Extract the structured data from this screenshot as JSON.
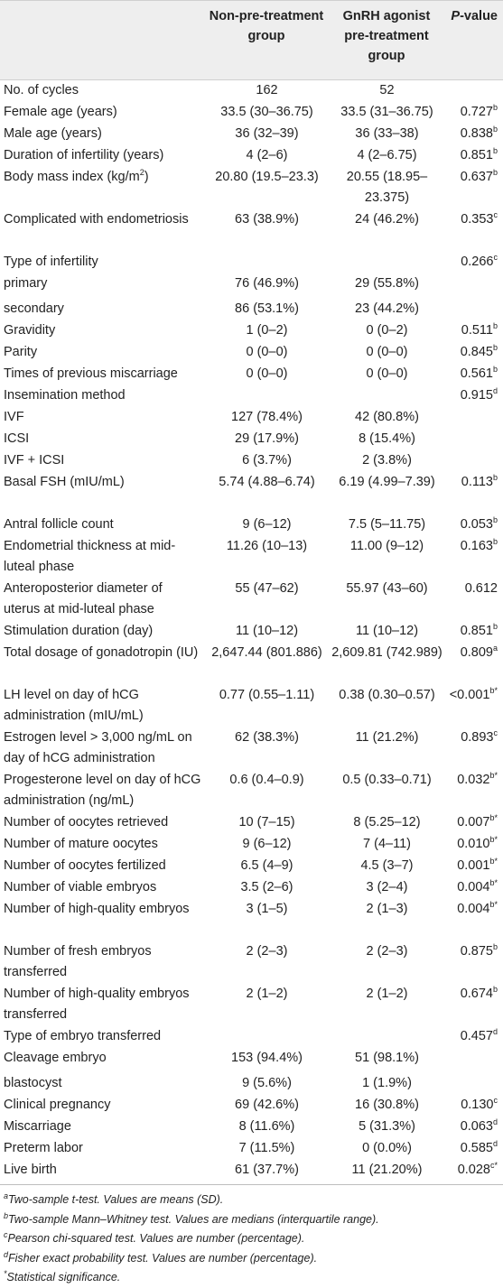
{
  "header": {
    "col1": "",
    "col2": "Non-pre-treatment group",
    "col3": "GnRH agonist pre-treatment group",
    "col4_italic": "P",
    "col4_rest": "-value"
  },
  "rows": [
    {
      "label": "No. of cycles",
      "a": "162",
      "b": "52",
      "p": "",
      "sup": ""
    },
    {
      "label": "Female age (years)",
      "a": "33.5 (30–36.75)",
      "b": "33.5 (31–36.75)",
      "p": "0.727",
      "sup": "b"
    },
    {
      "label": "Male age (years)",
      "a": "36 (32–39)",
      "b": "36 (33–38)",
      "p": "0.838",
      "sup": "b"
    },
    {
      "label": "Duration of infertility (years)",
      "a": "4 (2–6)",
      "b": "4 (2–6.75)",
      "p": "0.851",
      "sup": "b"
    },
    {
      "label": "Body mass index (kg/m",
      "label_sup": "2",
      "label_tail": ")",
      "a": "20.80 (19.5–23.3)",
      "b": "20.55 (18.95–23.375)",
      "p": "0.637",
      "sup": "b"
    },
    {
      "label": "Complicated with endometriosis",
      "a": "63 (38.9%)",
      "b": "24 (46.2%)",
      "p": "0.353",
      "sup": "c"
    },
    {
      "label": "Type of infertility",
      "a": "",
      "b": "",
      "p": "0.266",
      "sup": "c"
    },
    {
      "label": "primary",
      "a": "76 (46.9%)",
      "b": "29 (55.8%)",
      "p": "",
      "sup": ""
    },
    {
      "label": "secondary",
      "a": "86 (53.1%)",
      "b": "23 (44.2%)",
      "p": "",
      "sup": ""
    },
    {
      "label": "Gravidity",
      "a": "1 (0–2)",
      "b": "0 (0–2)",
      "p": "0.511",
      "sup": "b"
    },
    {
      "label": "Parity",
      "a": "0 (0–0)",
      "b": "0 (0–0)",
      "p": "0.845",
      "sup": "b"
    },
    {
      "label": "Times of previous miscarriage",
      "a": "0 (0–0)",
      "b": "0 (0–0)",
      "p": "0.561",
      "sup": "b"
    },
    {
      "label": "Insemination method",
      "a": "",
      "b": "",
      "p": "0.915",
      "sup": "d"
    },
    {
      "label": "IVF",
      "a": "127 (78.4%)",
      "b": "42 (80.8%)",
      "p": "",
      "sup": ""
    },
    {
      "label": "ICSI",
      "a": "29 (17.9%)",
      "b": "8 (15.4%)",
      "p": "",
      "sup": ""
    },
    {
      "label": "IVF + ICSI",
      "a": "6 (3.7%)",
      "b": "2 (3.8%)",
      "p": "",
      "sup": ""
    },
    {
      "label": "Basal FSH (mIU/mL)",
      "a": "5.74 (4.88–6.74)",
      "b": "6.19 (4.99–7.39)",
      "p": "0.113",
      "sup": "b"
    },
    {
      "label": "Antral follicle count",
      "a": "9 (6–12)",
      "b": "7.5 (5–11.75)",
      "p": "0.053",
      "sup": "b"
    },
    {
      "label": "Endometrial thickness at mid-luteal phase",
      "a": "11.26 (10–13)",
      "b": "11.00 (9–12)",
      "p": "0.163",
      "sup": "b"
    },
    {
      "label": "Anteroposterior diameter of uterus at mid-luteal phase",
      "a": "55 (47–62)",
      "b": "55.97 (43–60)",
      "p": "0.612",
      "sup": ""
    },
    {
      "label": "Stimulation duration (day)",
      "a": "11 (10–12)",
      "b": "11 (10–12)",
      "p": "0.851",
      "sup": "b"
    },
    {
      "label": "Total dosage of gonadotropin (IU)",
      "a": "2,647.44 (801.886)",
      "b": "2,609.81 (742.989)",
      "p": "0.809",
      "sup": "a"
    },
    {
      "label": "LH level on day of hCG administration (mIU/mL)",
      "a": "0.77 (0.55–1.11)",
      "b": "0.38 (0.30–0.57)",
      "p": "<0.001",
      "sup": "b*"
    },
    {
      "label": "Estrogen level > 3,000 ng/mL on day of hCG administration",
      "a": "62 (38.3%)",
      "b": "11 (21.2%)",
      "p": "0.893",
      "sup": "c"
    },
    {
      "label": "Progesterone level on day of hCG administration (ng/mL)",
      "a": "0.6 (0.4–0.9)",
      "b": "0.5 (0.33–0.71)",
      "p": "0.032",
      "sup": "b*"
    },
    {
      "label": "Number of oocytes retrieved",
      "a": "10 (7–15)",
      "b": "8 (5.25–12)",
      "p": "0.007",
      "sup": "b*"
    },
    {
      "label": "Number of mature oocytes",
      "a": "9 (6–12)",
      "b": "7 (4–11)",
      "p": "0.010",
      "sup": "b*"
    },
    {
      "label": "Number of oocytes fertilized",
      "a": "6.5 (4–9)",
      "b": "4.5 (3–7)",
      "p": "0.001",
      "sup": "b*"
    },
    {
      "label": "Number of viable embryos",
      "a": "3.5 (2–6)",
      "b": "3 (2–4)",
      "p": "0.004",
      "sup": "b*"
    },
    {
      "label": "Number of high-quality embryos",
      "a": "3 (1–5)",
      "b": "2 (1–3)",
      "p": "0.004",
      "sup": "b*"
    },
    {
      "label": "Number of fresh embryos transferred",
      "a": "2 (2–3)",
      "b": "2 (2–3)",
      "p": "0.875",
      "sup": "b"
    },
    {
      "label": "Number of high-quality embryos transferred",
      "a": "2 (1–2)",
      "b": "2 (1–2)",
      "p": "0.674",
      "sup": "b"
    },
    {
      "label": "Type of embryo transferred",
      "a": "",
      "b": "",
      "p": "0.457",
      "sup": "d"
    },
    {
      "label": "Cleavage embryo",
      "a": "153 (94.4%)",
      "b": "51 (98.1%)",
      "p": "",
      "sup": ""
    },
    {
      "label": "blastocyst",
      "a": "9 (5.6%)",
      "b": "1 (1.9%)",
      "p": "",
      "sup": ""
    },
    {
      "label": "Clinical pregnancy",
      "a": "69 (42.6%)",
      "b": "16 (30.8%)",
      "p": "0.130",
      "sup": "c"
    },
    {
      "label": "Miscarriage",
      "a": "8 (11.6%)",
      "b": "5 (31.3%)",
      "p": "0.063",
      "sup": "d"
    },
    {
      "label": "Preterm labor",
      "a": "7 (11.5%)",
      "b": "0 (0.0%)",
      "p": "0.585",
      "sup": "d"
    },
    {
      "label": "Live birth",
      "a": "61 (37.7%)",
      "b": "11 (21.20%)",
      "p": "0.028",
      "sup": "c*"
    }
  ],
  "footnotes": [
    {
      "mark": "a",
      "text": "Two-sample t-test. Values are means (SD)."
    },
    {
      "mark": "b",
      "text": "Two-sample Mann–Whitney test. Values are medians (interquartile range)."
    },
    {
      "mark": "c",
      "text": "Pearson chi-squared test. Values are number (percentage)."
    },
    {
      "mark": "d",
      "text": "Fisher exact probability test. Values are number (percentage)."
    },
    {
      "mark": "*",
      "text": "Statistical significance."
    }
  ]
}
